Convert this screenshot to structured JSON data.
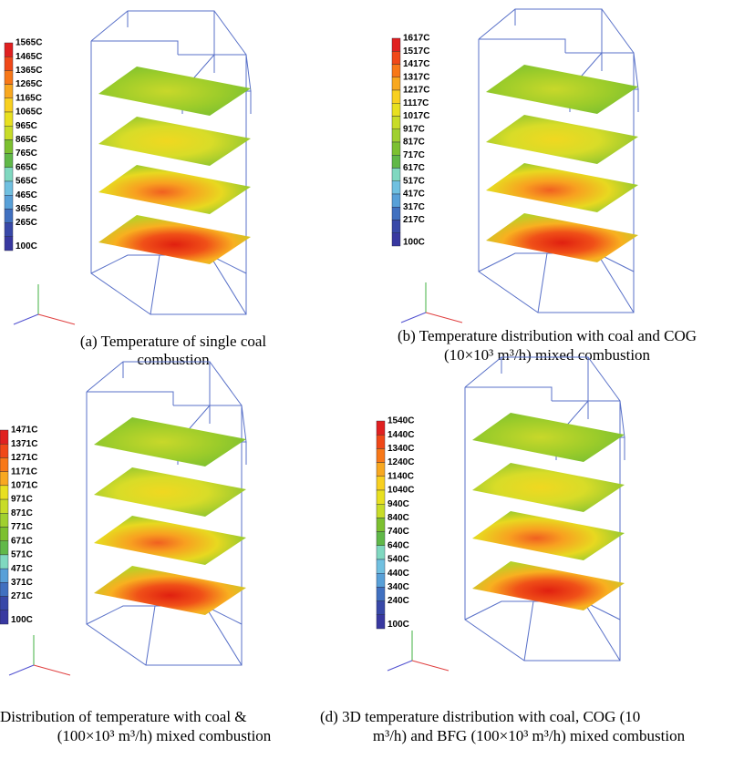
{
  "panels": [
    {
      "legend": [
        "1565C",
        "1465C",
        "1365C",
        "1265C",
        "1165C",
        "1065C",
        "965C",
        "865C",
        "765C",
        "665C",
        "565C",
        "465C",
        "365C",
        "265C",
        "100C"
      ],
      "caption": [
        "(a) Temperature of single coal",
        "combustion"
      ]
    },
    {
      "legend": [
        "1617C",
        "1517C",
        "1417C",
        "1317C",
        "1217C",
        "1117C",
        "1017C",
        "917C",
        "817C",
        "717C",
        "617C",
        "517C",
        "417C",
        "317C",
        "217C",
        "100C"
      ],
      "caption": [
        "(b) Temperature distribution with coal and COG",
        "(10×10³ m³/h) mixed combustion"
      ]
    },
    {
      "legend": [
        "1471C",
        "1371C",
        "1271C",
        "1171C",
        "1071C",
        "971C",
        "871C",
        "771C",
        "671C",
        "571C",
        "471C",
        "371C",
        "271C",
        "100C"
      ],
      "caption": [
        "Distribution of temperature with coal &",
        "(100×10³ m³/h) mixed combustion"
      ]
    },
    {
      "legend": [
        "1540C",
        "1440C",
        "1340C",
        "1240C",
        "1140C",
        "1040C",
        "940C",
        "840C",
        "740C",
        "640C",
        "540C",
        "440C",
        "340C",
        "240C",
        "100C"
      ],
      "caption": [
        "(d) 3D temperature distribution with coal, COG (10",
        "m³/h) and BFG (100×10³ m³/h) mixed combustion"
      ]
    }
  ]
}
